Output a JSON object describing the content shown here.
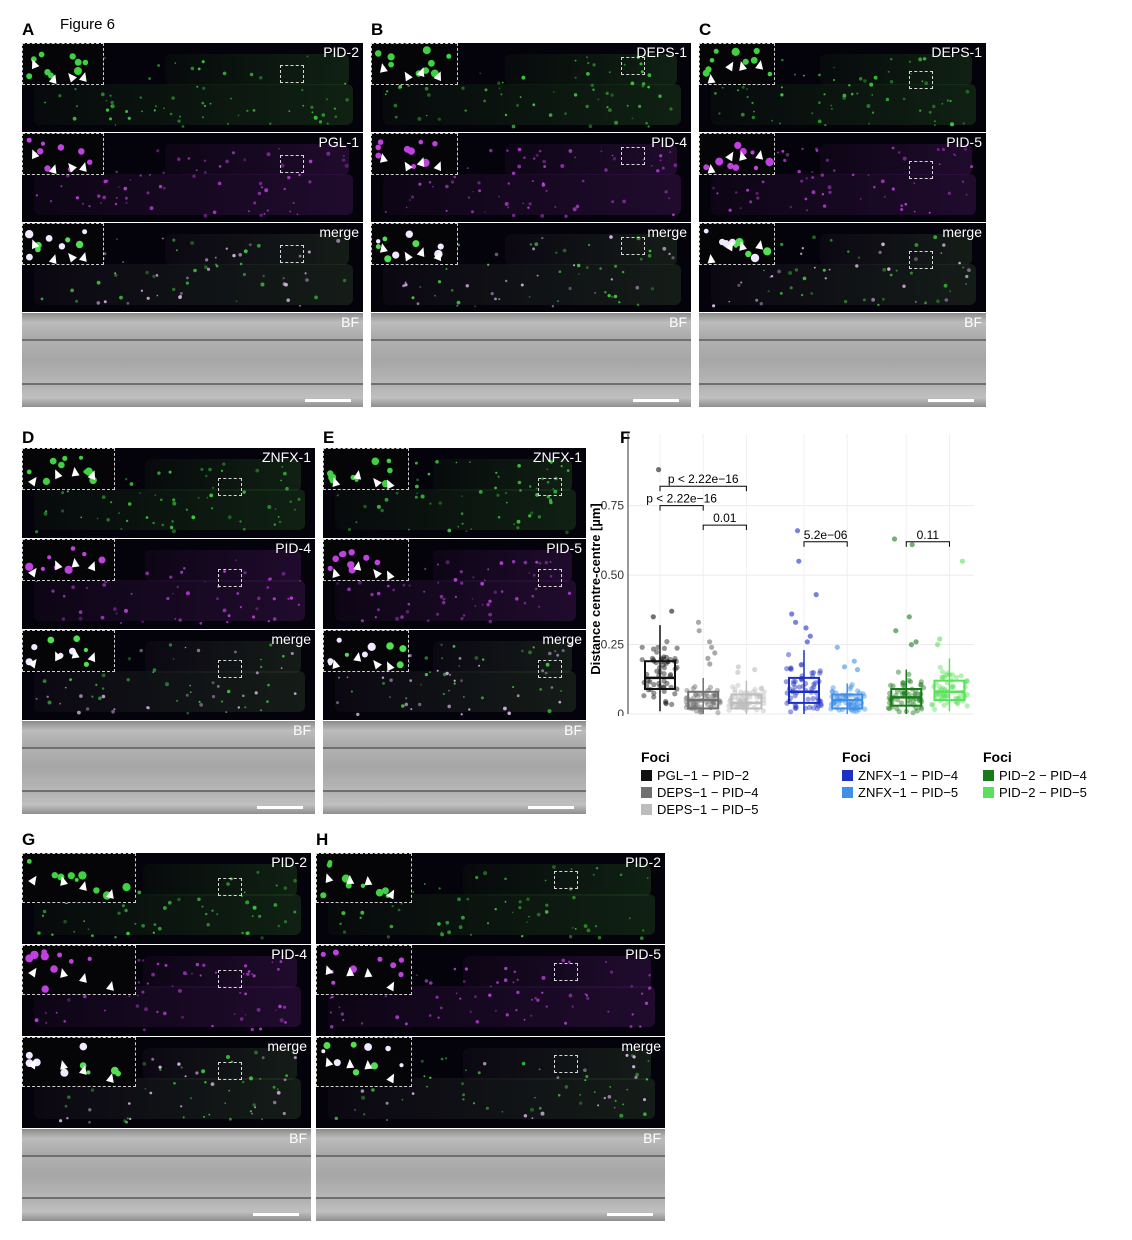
{
  "figure_title": "Figure 6",
  "panel_letters": [
    "A",
    "B",
    "C",
    "D",
    "E",
    "F",
    "G",
    "H"
  ],
  "panel_A": {
    "labels": [
      "PID-2",
      "PGL-1",
      "merge",
      "BF"
    ]
  },
  "panel_B": {
    "labels": [
      "DEPS-1",
      "PID-4",
      "merge",
      "BF"
    ]
  },
  "panel_C": {
    "labels": [
      "DEPS-1",
      "PID-5",
      "merge",
      "BF"
    ]
  },
  "panel_D": {
    "labels": [
      "ZNFX-1",
      "PID-4",
      "merge",
      "BF"
    ]
  },
  "panel_E": {
    "labels": [
      "ZNFX-1",
      "PID-5",
      "merge",
      "BF"
    ]
  },
  "panel_G": {
    "labels": [
      "PID-2",
      "PID-4",
      "merge",
      "BF"
    ]
  },
  "panel_H": {
    "labels": [
      "PID-2",
      "PID-5",
      "merge",
      "BF"
    ]
  },
  "colors": {
    "green_channel": "#3fd13f",
    "magenta_channel": "#c040e0"
  },
  "chart_data": {
    "type": "box",
    "ylabel": "Distance centre-centre [µm]",
    "ylim": [
      0,
      0.9
    ],
    "yticks": [
      0,
      0.25,
      0.5,
      0.75
    ],
    "ytick_labels": [
      "0",
      "0.25",
      "0.50",
      "0.75"
    ],
    "grid": true,
    "groups": [
      {
        "legend_title": "Foci",
        "series": [
          {
            "name": "PGL−1 − PID−2",
            "color": "#111111",
            "q1": 0.09,
            "median": 0.13,
            "q3": 0.19,
            "whisker_low": 0.01,
            "whisker_high": 0.32,
            "outliers": [
              0.88,
              0.37,
              0.35
            ]
          },
          {
            "name": "DEPS−1 − PID−4",
            "color": "#707070",
            "q1": 0.02,
            "median": 0.05,
            "q3": 0.08,
            "whisker_low": 0.0,
            "whisker_high": 0.13,
            "outliers": [
              0.33,
              0.3,
              0.26,
              0.24,
              0.22,
              0.2,
              0.18
            ]
          },
          {
            "name": "DEPS−1 − PID−5",
            "color": "#bdbdbd",
            "q1": 0.02,
            "median": 0.04,
            "q3": 0.07,
            "whisker_low": 0.0,
            "whisker_high": 0.12,
            "outliers": [
              0.17,
              0.16,
              0.15
            ]
          }
        ],
        "comparisons": [
          {
            "from": 0,
            "to": 1,
            "label": "p < 2.22e−16",
            "y": 0.75
          },
          {
            "from": 0,
            "to": 2,
            "label": "p < 2.22e−16",
            "y": 0.82
          },
          {
            "from": 1,
            "to": 2,
            "label": "0.01",
            "y": 0.68
          }
        ]
      },
      {
        "legend_title": "Foci",
        "series": [
          {
            "name": "ZNFX−1 − PID−4",
            "color": "#1c2fc4",
            "q1": 0.04,
            "median": 0.08,
            "q3": 0.13,
            "whisker_low": 0.0,
            "whisker_high": 0.23,
            "outliers": [
              0.66,
              0.55,
              0.43,
              0.36,
              0.33,
              0.31,
              0.28,
              0.26
            ]
          },
          {
            "name": "ZNFX−1 − PID−5",
            "color": "#3f8fe8",
            "q1": 0.02,
            "median": 0.05,
            "q3": 0.07,
            "whisker_low": 0.0,
            "whisker_high": 0.11,
            "outliers": [
              0.24,
              0.19,
              0.17,
              0.16
            ]
          }
        ],
        "comparisons": [
          {
            "from": 0,
            "to": 1,
            "label": "5.2e−06",
            "y": 0.62
          }
        ]
      },
      {
        "legend_title": "Foci",
        "series": [
          {
            "name": "PID−2 − PID−4",
            "color": "#1a7a1a",
            "q1": 0.03,
            "median": 0.06,
            "q3": 0.09,
            "whisker_low": 0.0,
            "whisker_high": 0.16,
            "outliers": [
              0.63,
              0.61,
              0.35,
              0.3,
              0.26,
              0.25
            ]
          },
          {
            "name": "PID−2 − PID−5",
            "color": "#5ce05c",
            "q1": 0.05,
            "median": 0.08,
            "q3": 0.12,
            "whisker_low": 0.01,
            "whisker_high": 0.2,
            "outliers": [
              0.55,
              0.27,
              0.25
            ]
          }
        ],
        "comparisons": [
          {
            "from": 0,
            "to": 1,
            "label": "0.11",
            "y": 0.62
          }
        ]
      }
    ]
  }
}
